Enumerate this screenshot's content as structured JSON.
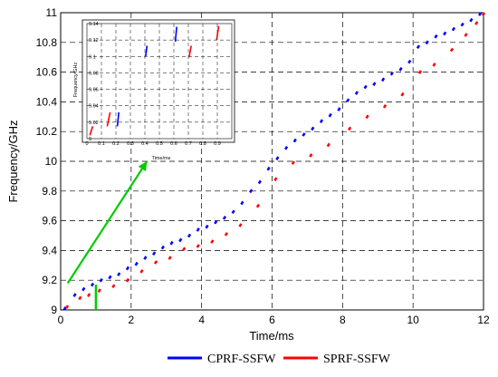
{
  "chart_data": {
    "type": "scatter",
    "xlabel": "Time/ms",
    "ylabel": "Frequency/GHz",
    "xlim": [
      0,
      12
    ],
    "ylim": [
      9,
      11
    ],
    "xticks": [
      "0",
      "2",
      "4",
      "6",
      "8",
      "10",
      "12"
    ],
    "yticks": [
      "9",
      "9.2",
      "9.4",
      "9.6",
      "9.8",
      "10",
      "10.2",
      "10.4",
      "10.6",
      "10.8",
      "11"
    ],
    "grid": true,
    "legend_position": "bottom",
    "series": [
      {
        "name": "CPRF-SSFW",
        "color": "#0000ff",
        "points": [
          [
            0.12,
            9.01
          ],
          [
            0.4,
            9.1
          ],
          [
            0.65,
            9.14
          ],
          [
            0.9,
            9.17
          ],
          [
            1.15,
            9.2
          ],
          [
            1.4,
            9.22
          ],
          [
            1.65,
            9.24
          ],
          [
            1.9,
            9.28
          ],
          [
            2.15,
            9.31
          ],
          [
            2.4,
            9.35
          ],
          [
            2.65,
            9.38
          ],
          [
            2.9,
            9.42
          ],
          [
            3.15,
            9.45
          ],
          [
            3.4,
            9.47
          ],
          [
            3.65,
            9.5
          ],
          [
            3.9,
            9.54
          ],
          [
            4.15,
            9.56
          ],
          [
            4.4,
            9.59
          ],
          [
            4.65,
            9.62
          ],
          [
            4.9,
            9.66
          ],
          [
            5.15,
            9.72
          ],
          [
            5.4,
            9.8
          ],
          [
            5.65,
            9.86
          ],
          [
            5.9,
            9.95
          ],
          [
            6.15,
            10.02
          ],
          [
            6.4,
            10.09
          ],
          [
            6.65,
            10.14
          ],
          [
            6.9,
            10.18
          ],
          [
            7.15,
            10.22
          ],
          [
            7.4,
            10.27
          ],
          [
            7.65,
            10.31
          ],
          [
            7.9,
            10.35
          ],
          [
            8.15,
            10.41
          ],
          [
            8.4,
            10.46
          ],
          [
            8.65,
            10.5
          ],
          [
            8.9,
            10.52
          ],
          [
            9.15,
            10.55
          ],
          [
            9.4,
            10.59
          ],
          [
            9.65,
            10.62
          ],
          [
            9.9,
            10.67
          ],
          [
            10.15,
            10.77
          ],
          [
            10.4,
            10.8
          ],
          [
            10.65,
            10.84
          ],
          [
            10.9,
            10.86
          ],
          [
            11.15,
            10.89
          ],
          [
            11.4,
            10.92
          ],
          [
            11.65,
            10.95
          ],
          [
            11.9,
            10.99
          ]
        ]
      },
      {
        "name": "SPRF-SSFW",
        "color": "#ff0000",
        "points": [
          [
            0.18,
            9.02
          ],
          [
            0.55,
            9.08
          ],
          [
            0.8,
            9.1
          ],
          [
            1.1,
            9.13
          ],
          [
            1.5,
            9.16
          ],
          [
            1.9,
            9.2
          ],
          [
            2.3,
            9.26
          ],
          [
            2.7,
            9.32
          ],
          [
            3.1,
            9.35
          ],
          [
            3.5,
            9.41
          ],
          [
            3.9,
            9.43
          ],
          [
            4.3,
            9.46
          ],
          [
            4.7,
            9.51
          ],
          [
            5.1,
            9.57
          ],
          [
            5.6,
            9.7
          ],
          [
            6.1,
            9.88
          ],
          [
            6.6,
            9.99
          ],
          [
            7.1,
            10.04
          ],
          [
            7.6,
            10.11
          ],
          [
            8.2,
            10.22
          ],
          [
            8.7,
            10.3
          ],
          [
            9.2,
            10.37
          ],
          [
            9.7,
            10.45
          ],
          [
            10.2,
            10.6
          ],
          [
            10.6,
            10.65
          ],
          [
            11.1,
            10.75
          ],
          [
            11.5,
            10.85
          ],
          [
            11.8,
            10.93
          ],
          [
            12.0,
            10.99
          ]
        ]
      }
    ],
    "annotations": {
      "highlight_x": 1.0,
      "arrow_from": [
        0.2,
        9.18
      ],
      "arrow_to": [
        2.45,
        10.0
      ],
      "arrow_color": "#00cc00"
    },
    "inset": {
      "xlim": [
        0,
        1
      ],
      "ylim": [
        9,
        9.14
      ],
      "xticks": [
        "0",
        "0.1",
        "0.2",
        "0.3",
        "0.4",
        "0.5",
        "0.6",
        "0.7",
        "0.8",
        "0.9"
      ],
      "yticks": [
        "9",
        "9.02",
        "9.04",
        "9.06",
        "9.08",
        "9.1",
        "9.12",
        "9.14"
      ],
      "xlabel": "Time/ms",
      "ylabel": "Frequency/GHz",
      "blue_segments": [
        [
          0.21,
          9.015,
          0.22,
          9.032
        ],
        [
          0.405,
          9.1,
          0.415,
          9.113
        ],
        [
          0.61,
          9.118,
          0.62,
          9.136
        ]
      ],
      "red_segments": [
        [
          0.02,
          9.004,
          0.04,
          9.015
        ],
        [
          0.14,
          9.015,
          0.16,
          9.032
        ],
        [
          0.705,
          9.099,
          0.72,
          9.113
        ],
        [
          0.895,
          9.12,
          0.91,
          9.137
        ]
      ]
    }
  }
}
